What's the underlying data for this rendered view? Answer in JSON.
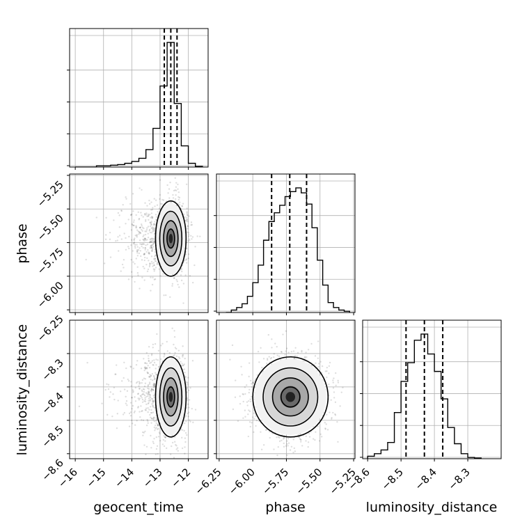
{
  "chart_data": {
    "type": "corner",
    "parameters": [
      "geocent_time",
      "phase",
      "luminosity_distance"
    ],
    "axes": {
      "geocent_time": {
        "range": [
          -16.2,
          -11.3
        ],
        "ticks": [
          -16,
          -15,
          -14,
          -13,
          -12
        ],
        "tick_labels": [
          "−16",
          "−15",
          "−14",
          "−13",
          "−12"
        ]
      },
      "phase": {
        "range": [
          -6.27,
          -5.24
        ],
        "ticks": [
          -6.25,
          -6.0,
          -5.75,
          -5.5,
          -5.25
        ],
        "tick_labels": [
          "−6.25",
          "−6.00",
          "−5.75",
          "−5.50",
          "−5.25"
        ]
      },
      "luminosity_distance": {
        "range": [
          -8.615,
          -8.2
        ],
        "ticks": [
          -8.6,
          -8.5,
          -8.4,
          -8.3
        ],
        "tick_labels": [
          "−8.6",
          "−8.5",
          "−8.4",
          "−8.3"
        ]
      }
    },
    "histograms": {
      "geocent_time": {
        "edges": [
          -16.0,
          -15.75,
          -15.5,
          -15.25,
          -15.0,
          -14.75,
          -14.5,
          -14.25,
          -14.0,
          -13.75,
          -13.5,
          -13.25,
          -13.0,
          -12.75,
          -12.5,
          -12.25,
          -12.0,
          -11.75,
          -11.5
        ],
        "counts": [
          0,
          0,
          0,
          0.01,
          0.01,
          0.015,
          0.02,
          0.03,
          0.045,
          0.07,
          0.14,
          0.31,
          0.65,
          1.0,
          0.51,
          0.17,
          0.03,
          0.005
        ],
        "quantiles": [
          -12.85,
          -12.62,
          -12.4
        ]
      },
      "phase": {
        "edges": [
          -6.2,
          -6.16,
          -6.12,
          -6.08,
          -6.04,
          -6.0,
          -5.96,
          -5.92,
          -5.88,
          -5.84,
          -5.8,
          -5.76,
          -5.72,
          -5.68,
          -5.64,
          -5.6,
          -5.56,
          -5.52,
          -5.48,
          -5.44,
          -5.4,
          -5.36,
          -5.32,
          -5.28
        ],
        "counts": [
          0,
          0.02,
          0.04,
          0.07,
          0.13,
          0.24,
          0.38,
          0.58,
          0.73,
          0.8,
          0.86,
          0.93,
          0.97,
          1.0,
          0.96,
          0.87,
          0.68,
          0.42,
          0.22,
          0.08,
          0.04,
          0.02,
          0.01
        ],
        "quantiles": [
          -5.86,
          -5.725,
          -5.6
        ]
      },
      "luminosity_distance": {
        "edges": [
          -8.6,
          -8.58,
          -8.56,
          -8.54,
          -8.52,
          -8.5,
          -8.48,
          -8.46,
          -8.44,
          -8.42,
          -8.4,
          -8.38,
          -8.36,
          -8.34,
          -8.32,
          -8.3,
          -8.28,
          -8.26
        ],
        "counts": [
          0.02,
          0.04,
          0.07,
          0.13,
          0.37,
          0.62,
          0.77,
          0.95,
          1.0,
          0.84,
          0.7,
          0.48,
          0.25,
          0.12,
          0.04,
          0.01,
          0.005
        ],
        "quantiles": [
          -8.485,
          -8.43,
          -8.375
        ]
      }
    },
    "joint_2d": [
      {
        "x": "geocent_time",
        "y": "phase",
        "center": [
          -12.62,
          -5.72
        ],
        "spread": [
          0.27,
          0.14
        ]
      },
      {
        "x": "geocent_time",
        "y": "luminosity_distance",
        "center": [
          -12.62,
          -8.43
        ],
        "spread": [
          0.27,
          0.06
        ]
      },
      {
        "x": "phase",
        "y": "luminosity_distance",
        "center": [
          -5.72,
          -8.43
        ],
        "spread": [
          0.14,
          0.06
        ]
      }
    ],
    "grid": true
  },
  "labels": {
    "x": [
      "geocent_time",
      "phase",
      "luminosity_distance"
    ],
    "y": [
      "phase",
      "luminosity_distance"
    ]
  }
}
